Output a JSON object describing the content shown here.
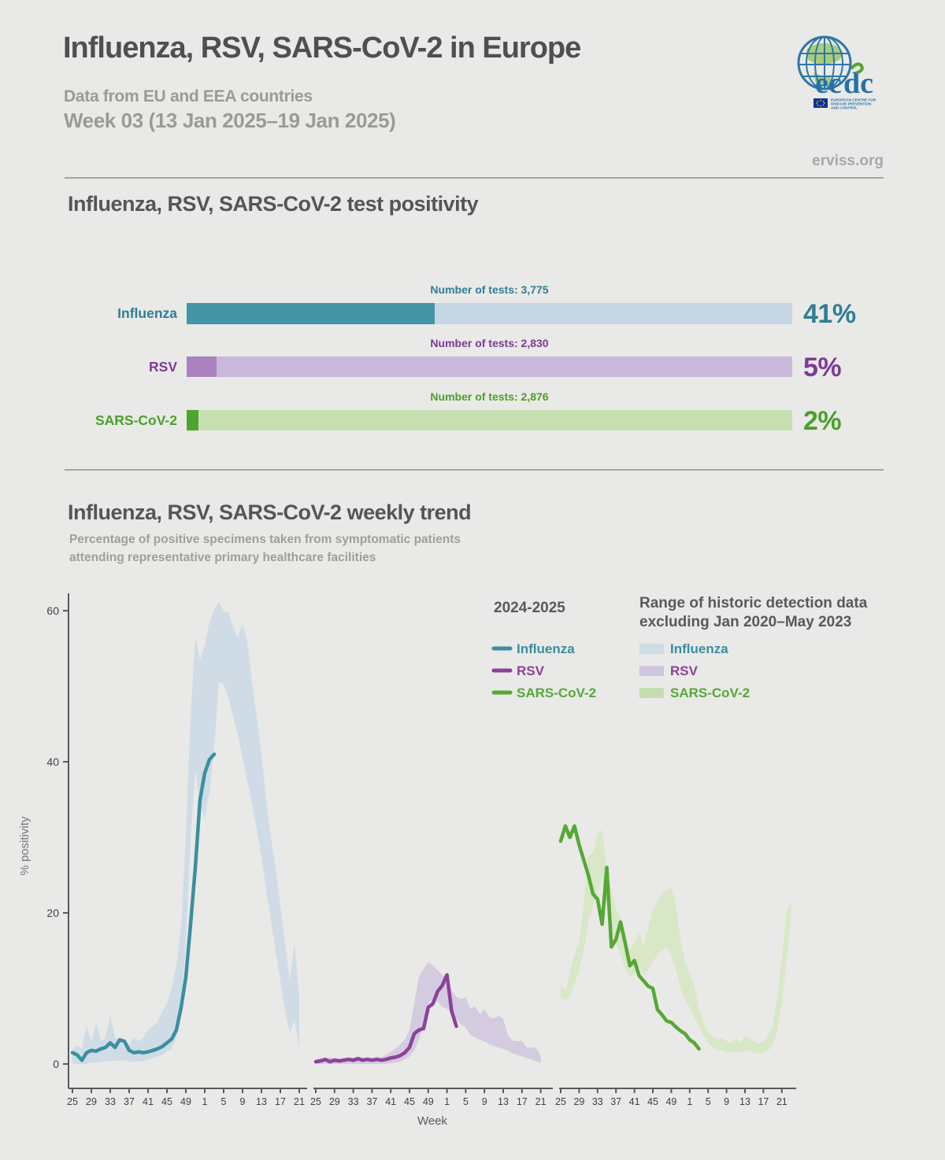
{
  "colors": {
    "background": "#e9e9e7",
    "heading": "#4e4f51",
    "muted_heading": "#9a9a98",
    "axis": "#58595b",
    "tick_text": "#414042",
    "divider": "#8f8f8f",
    "influenza_teal": "#3a8fa0",
    "rsv_purple": "#8c4198",
    "sars_green": "#56a836"
  },
  "header": {
    "title": "Influenza, RSV, SARS-CoV-2 in Europe",
    "subtitle": "Data from EU and EEA countries",
    "week_line": "Week 03 (13 Jan 2025–19 Jan 2025)",
    "site": "erviss.org",
    "logo": {
      "wordmark": "ecdc",
      "org_lines": [
        "EUROPEAN CENTRE FOR",
        "DISEASE PREVENTION",
        "AND CONTROL"
      ]
    }
  },
  "positivity": {
    "title": "Influenza, RSV, SARS-CoV-2 test positivity",
    "rows": [
      {
        "label": "Influenza",
        "tests_label": "Number of tests: 3,775",
        "pct": 41,
        "pct_label": "41%",
        "fill": "#4496a6",
        "track": "#c5d6e2",
        "text_color": "#2e7f95"
      },
      {
        "label": "RSV",
        "tests_label": "Number of tests: 2,830",
        "pct": 5,
        "pct_label": "5%",
        "fill": "#aa82bf",
        "track": "#c8b9da",
        "text_color": "#7d3a96"
      },
      {
        "label": "SARS-CoV-2",
        "tests_label": "Number of tests: 2,876",
        "pct": 2,
        "pct_label": "2%",
        "fill": "#4ca62e",
        "track": "#c8dfb2",
        "text_color": "#4ba02a"
      }
    ]
  },
  "trend": {
    "title": "Influenza, RSV, SARS-CoV-2 weekly trend",
    "subtitle_lines": [
      "Percentage of positive specimens taken from symptomatic patients",
      "attending representative primary healthcare facilities"
    ]
  },
  "chart_data": {
    "type": "line",
    "title": "Influenza, RSV, SARS-CoV-2 weekly trend",
    "xlabel": "Week",
    "ylabel": "% positivity",
    "ylim": [
      0,
      63
    ],
    "yticks": [
      0,
      20,
      40,
      60
    ],
    "x_tick_labels": [
      "25",
      "29",
      "33",
      "37",
      "41",
      "45",
      "49",
      "1",
      "5",
      "9",
      "13",
      "17",
      "21"
    ],
    "x_structure": "three side-by-side panels (Influenza, RSV, SARS-CoV-2), each spanning week 25 of one year to week 21 of the next; season lines run week 25 2024 to week 3 2025",
    "legend": {
      "season_title": "2024-2025",
      "historic_title_lines": [
        "Range of historic detection data",
        "excluding Jan 2020–May 2023"
      ],
      "entries": [
        {
          "label": "Influenza",
          "line_color": "#3b8ca1",
          "band_color": "#ccdde7"
        },
        {
          "label": "RSV",
          "line_color": "#8c4198",
          "band_color": "#d0c5de"
        },
        {
          "label": "SARS-CoV-2",
          "line_color": "#56a836",
          "band_color": "#c5ddae"
        }
      ]
    },
    "panels": [
      {
        "name": "Influenza",
        "line_color": "#3a8fa0",
        "band_color": "#cfdce6",
        "line_weeks": [
          25,
          26,
          27,
          28,
          29,
          30,
          31,
          32,
          33,
          34,
          35,
          36,
          37,
          38,
          39,
          40,
          41,
          42,
          43,
          44,
          45,
          46,
          47,
          48,
          49,
          50,
          51,
          52,
          1,
          2,
          3
        ],
        "line_values": [
          1.5,
          1.2,
          0.5,
          1.5,
          1.8,
          1.7,
          2.0,
          2.2,
          2.8,
          2.2,
          3.2,
          3.0,
          1.8,
          1.5,
          1.6,
          1.5,
          1.6,
          1.8,
          2.0,
          2.3,
          2.8,
          3.3,
          4.5,
          7.5,
          11.5,
          18.5,
          26,
          35,
          38.5,
          40.3,
          41
        ],
        "band_upper": [
          2,
          2.5,
          2,
          5,
          3,
          5.5,
          3,
          3.5,
          6.5,
          3.5,
          3,
          2.5,
          2.5,
          3.5,
          3,
          3.5,
          4.5,
          5,
          5.5,
          7,
          8,
          10,
          13,
          18,
          30,
          46,
          56.5,
          53.5,
          55.5,
          58.5,
          60.2,
          61.2,
          59.8,
          59.8,
          57.8,
          56.5,
          58.2,
          56,
          50.5,
          46,
          41,
          35,
          30,
          26,
          21,
          16,
          11,
          16,
          9
        ],
        "band_lower": [
          0,
          0,
          0,
          0,
          0.2,
          0.2,
          0.3,
          0.4,
          0.4,
          0.4,
          0.5,
          0.5,
          0.3,
          0.3,
          0.4,
          0.4,
          0.6,
          0.8,
          1.0,
          1.2,
          1.6,
          2,
          3.5,
          8,
          16,
          30,
          39,
          34.5,
          32.5,
          36,
          42,
          50.5,
          50.3,
          48.5,
          46,
          43.5,
          40.5,
          37.5,
          34.5,
          31,
          27.5,
          23,
          19,
          15,
          11,
          7,
          4,
          6,
          2
        ]
      },
      {
        "name": "RSV",
        "line_color": "#8c4198",
        "band_color": "#d4cbe0",
        "line_weeks": [
          25,
          26,
          27,
          28,
          29,
          30,
          31,
          32,
          33,
          34,
          35,
          36,
          37,
          38,
          39,
          40,
          41,
          42,
          43,
          44,
          45,
          46,
          47,
          48,
          49,
          50,
          51,
          52,
          1,
          2,
          3
        ],
        "line_values": [
          0.3,
          0.4,
          0.6,
          0.3,
          0.5,
          0.4,
          0.5,
          0.6,
          0.5,
          0.7,
          0.5,
          0.6,
          0.5,
          0.6,
          0.5,
          0.6,
          0.8,
          0.9,
          1.1,
          1.5,
          2.2,
          4.0,
          4.5,
          4.7,
          7.5,
          8.0,
          9.6,
          10.4,
          11.8,
          7.0,
          5.0
        ],
        "band_upper": [
          0.6,
          0.8,
          0.7,
          0.9,
          0.8,
          0.7,
          0.8,
          0.9,
          0.8,
          1.0,
          0.8,
          0.9,
          0.8,
          1.0,
          0.9,
          1.2,
          1.6,
          2.0,
          2.6,
          3.2,
          4.5,
          8.0,
          11.5,
          12.6,
          13.5,
          13.0,
          12.4,
          11.8,
          11.5,
          9.7,
          8.9,
          8.6,
          8.8,
          7.3,
          7.6,
          6.6,
          7.3,
          6.2,
          6.0,
          6.4,
          6.0,
          3.8,
          3.1,
          3.0,
          3.1,
          2.1,
          2.2,
          2.1,
          1.0
        ],
        "band_lower": [
          0,
          0,
          0,
          0,
          0,
          0,
          0,
          0,
          0,
          0,
          0,
          0,
          0,
          0,
          0,
          0,
          0.1,
          0.2,
          0.3,
          0.6,
          1.0,
          1.8,
          3.2,
          5.2,
          8.0,
          8.6,
          8.2,
          7.6,
          7.3,
          6.8,
          6.0,
          5.2,
          4.8,
          3.8,
          3.5,
          3.2,
          3.0,
          2.6,
          2.4,
          2.2,
          2.0,
          1.8,
          1.4,
          1.2,
          1.0,
          0.8,
          0.6,
          0.4,
          0.1
        ]
      },
      {
        "name": "SARS-CoV-2",
        "line_color": "#56a836",
        "band_color": "#d8e7c6",
        "line_weeks": [
          25,
          26,
          27,
          28,
          29,
          30,
          31,
          32,
          33,
          34,
          35,
          36,
          37,
          38,
          39,
          40,
          41,
          42,
          43,
          44,
          45,
          46,
          47,
          48,
          49,
          50,
          51,
          52,
          1,
          2,
          3
        ],
        "line_values": [
          29.5,
          31.5,
          30,
          31.5,
          29,
          27,
          25,
          22.5,
          21.8,
          18.5,
          26,
          15.5,
          16.5,
          18.8,
          16,
          13,
          13.7,
          11.7,
          11,
          10.3,
          10,
          7.2,
          6.5,
          5.7,
          5.5,
          4.9,
          4.4,
          4.0,
          3.2,
          2.8,
          2.0
        ],
        "band_upper": [
          10.6,
          9.5,
          12,
          14.6,
          16,
          21,
          27.6,
          28,
          30.5,
          31,
          25.5,
          23,
          20.5,
          19.3,
          16,
          15,
          16,
          17.4,
          15.6,
          18,
          20.5,
          21.6,
          22.5,
          23,
          23.5,
          21,
          16.5,
          13.4,
          12,
          10.3,
          7.5,
          5.5,
          4.2,
          3.6,
          3.2,
          3.4,
          3.0,
          2.8,
          3.3,
          2.8,
          3.8,
          3.4,
          2.9,
          2.6,
          3.0,
          3.6,
          5.0,
          8.5,
          14,
          20,
          21.5
        ],
        "band_lower": [
          8.9,
          8.3,
          9,
          10.5,
          12.5,
          15,
          19,
          21,
          23,
          24.5,
          20.5,
          18,
          16,
          14.5,
          12.5,
          11.5,
          12,
          12.8,
          11.8,
          12.5,
          13.5,
          14.5,
          15,
          15.5,
          14.5,
          12.5,
          10,
          8.5,
          7.5,
          6.2,
          5,
          3.8,
          2.8,
          2.2,
          1.8,
          1.8,
          1.6,
          1.5,
          1.6,
          1.5,
          1.8,
          1.7,
          1.5,
          1.4,
          1.5,
          1.8,
          2.5,
          4.5,
          8,
          13.5,
          19.5
        ]
      }
    ]
  }
}
